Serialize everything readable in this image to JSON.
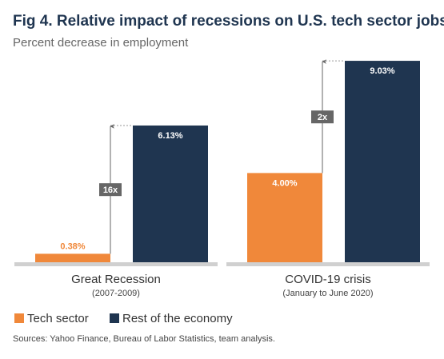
{
  "chart_data": {
    "type": "bar",
    "title": "Fig 4. Relative impact of recessions on U.S. tech sector jobs",
    "subtitle": "Percent decrease in employment",
    "categories": [
      "Great Recession",
      "COVID-19 crisis"
    ],
    "category_subtitles": [
      "(2007-2009)",
      "(January to June 2020)"
    ],
    "series": [
      {
        "name": "Tech sector",
        "color": "#f0883a",
        "values": [
          0.38,
          4
        ],
        "value_labels": [
          "0.38%",
          "4.00%"
        ]
      },
      {
        "name": "Rest of the economy",
        "color": "#1f3550",
        "values": [
          6.13,
          9.03
        ],
        "value_labels": [
          "6.13%",
          "9.03%"
        ]
      }
    ],
    "ratio_labels": [
      "16x",
      "2x"
    ],
    "ylim": [
      0,
      10
    ],
    "source": "Sources: Yahoo Finance, Bureau of Labor Statistics, team analysis."
  }
}
